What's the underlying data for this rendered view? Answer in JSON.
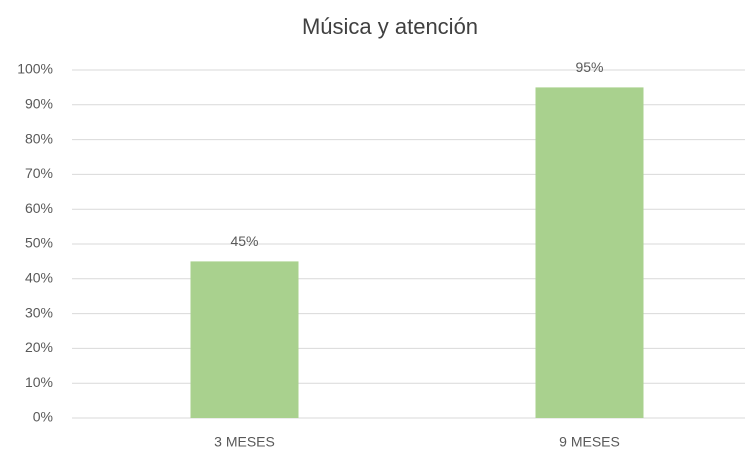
{
  "chart_data": {
    "type": "bar",
    "title": "Música y atención",
    "categories": [
      "3 MESES",
      "9 MESES"
    ],
    "values": [
      45,
      95
    ],
    "value_labels": [
      "45%",
      "95%"
    ],
    "color": "#a9d18e",
    "ylim": [
      0,
      100
    ],
    "yticks": [
      {
        "value": 0,
        "label": "0%"
      },
      {
        "value": 10,
        "label": "10%"
      },
      {
        "value": 20,
        "label": "20%"
      },
      {
        "value": 30,
        "label": "30%"
      },
      {
        "value": 40,
        "label": "40%"
      },
      {
        "value": 50,
        "label": "50%"
      },
      {
        "value": 60,
        "label": "60%"
      },
      {
        "value": 70,
        "label": "70%"
      },
      {
        "value": 80,
        "label": "80%"
      },
      {
        "value": 90,
        "label": "90%"
      },
      {
        "value": 100,
        "label": "100%"
      }
    ],
    "grid": true
  }
}
